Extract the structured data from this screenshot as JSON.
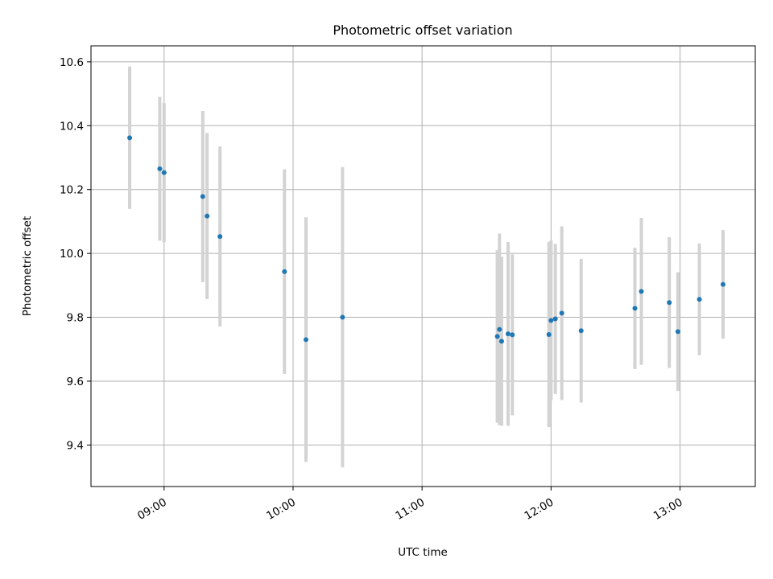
{
  "chart_data": {
    "type": "scatter",
    "title": "Photometric offset variation",
    "xlabel": "UTC time",
    "ylabel": "Photometric offset",
    "x_unit": "UTC time (HH:MM)",
    "xlim": [
      "08:26",
      "13:35"
    ],
    "ylim": [
      9.27,
      10.65
    ],
    "x_ticks": [
      "09:00",
      "10:00",
      "11:00",
      "12:00",
      "13:00"
    ],
    "y_ticks": [
      "9.4",
      "9.6",
      "9.8",
      "10.0",
      "10.2",
      "10.4",
      "10.6"
    ],
    "grid": true,
    "colors": {
      "point": "#1f77b4",
      "errorbar": "#d3d3d3",
      "grid": "#b0b0b0"
    },
    "series": [
      {
        "points": [
          {
            "x": "08:44",
            "y": 10.362,
            "yerr": 0.223
          },
          {
            "x": "08:58",
            "y": 10.265,
            "yerr": 0.225
          },
          {
            "x": "09:00",
            "y": 10.253,
            "yerr": 0.218
          },
          {
            "x": "09:18",
            "y": 10.178,
            "yerr": 0.268
          },
          {
            "x": "09:20",
            "y": 10.117,
            "yerr": 0.26
          },
          {
            "x": "09:26",
            "y": 10.053,
            "yerr": 0.282
          },
          {
            "x": "09:56",
            "y": 9.943,
            "yerr": 0.32
          },
          {
            "x": "10:06",
            "y": 9.73,
            "yerr": 0.383
          },
          {
            "x": "10:23",
            "y": 9.8,
            "yerr": 0.47
          },
          {
            "x": "11:35",
            "y": 9.74,
            "yerr": 0.27
          },
          {
            "x": "11:36",
            "y": 9.762,
            "yerr": 0.3
          },
          {
            "x": "11:37",
            "y": 9.725,
            "yerr": 0.265
          },
          {
            "x": "11:40",
            "y": 9.748,
            "yerr": 0.288
          },
          {
            "x": "11:42",
            "y": 9.745,
            "yerr": 0.252
          },
          {
            "x": "11:59",
            "y": 9.746,
            "yerr": 0.29
          },
          {
            "x": "12:00",
            "y": 9.79,
            "yerr": 0.25
          },
          {
            "x": "12:02",
            "y": 9.795,
            "yerr": 0.235
          },
          {
            "x": "12:05",
            "y": 9.813,
            "yerr": 0.272
          },
          {
            "x": "12:14",
            "y": 9.758,
            "yerr": 0.225
          },
          {
            "x": "12:39",
            "y": 9.828,
            "yerr": 0.19
          },
          {
            "x": "12:42",
            "y": 9.881,
            "yerr": 0.23
          },
          {
            "x": "12:55",
            "y": 9.846,
            "yerr": 0.205
          },
          {
            "x": "12:59",
            "y": 9.755,
            "yerr": 0.186
          },
          {
            "x": "13:09",
            "y": 9.856,
            "yerr": 0.175
          },
          {
            "x": "13:20",
            "y": 9.903,
            "yerr": 0.17
          }
        ]
      }
    ]
  }
}
